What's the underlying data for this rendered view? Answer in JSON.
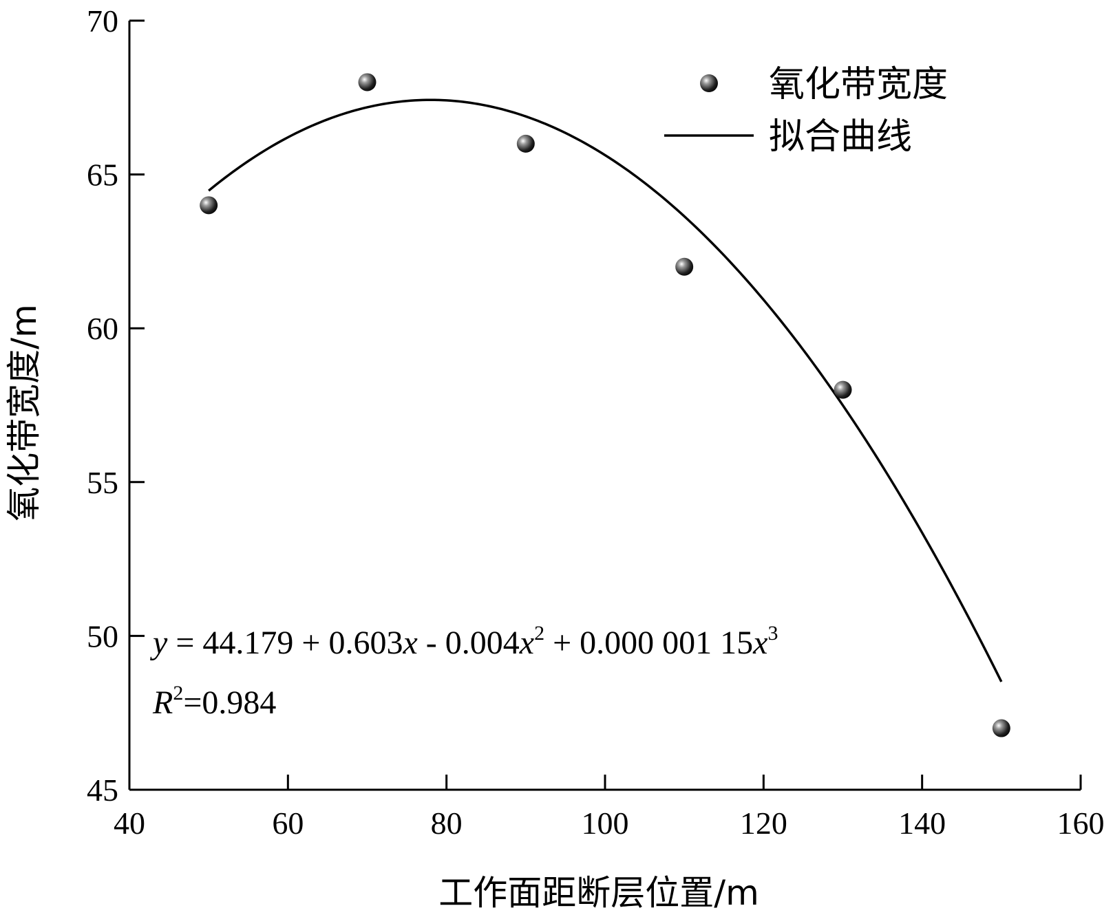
{
  "chart_data": {
    "type": "scatter",
    "xlabel": "工作面距断层位置/m",
    "ylabel": "氧化带宽度/m",
    "xlim": [
      40,
      160
    ],
    "ylim": [
      45,
      70
    ],
    "xticks": [
      "40",
      "60",
      "80",
      "100",
      "120",
      "140",
      "160"
    ],
    "yticks": [
      "45",
      "50",
      "55",
      "60",
      "65",
      "70"
    ],
    "xtick_values": [
      40,
      60,
      80,
      100,
      120,
      140,
      160
    ],
    "ytick_values": [
      45,
      50,
      55,
      60,
      65,
      70
    ],
    "series": [
      {
        "name": "氧化带宽度",
        "kind": "scatter",
        "x": [
          50,
          70,
          90,
          110,
          130,
          150
        ],
        "y": [
          64,
          68,
          66,
          62,
          58,
          47
        ]
      },
      {
        "name": "拟合曲线",
        "kind": "line",
        "coefficients": [
          44.179,
          0.603,
          -0.004,
          1.15e-06
        ],
        "x_range": [
          50,
          150
        ]
      }
    ],
    "legend_position": "top-right",
    "annotation": {
      "equation_y": "y",
      "equation_eq": " = 44.179 + 0.603",
      "equation_x1": "x",
      "equation_mid": " - 0.004",
      "equation_x2": "x",
      "equation_sup2": "2",
      "equation_tail": " + 0.000 001 15",
      "equation_x3": "x",
      "equation_sup3": "3",
      "r2_symbol": "R",
      "r2_sup": "2",
      "r2_value": "=0.984"
    }
  }
}
